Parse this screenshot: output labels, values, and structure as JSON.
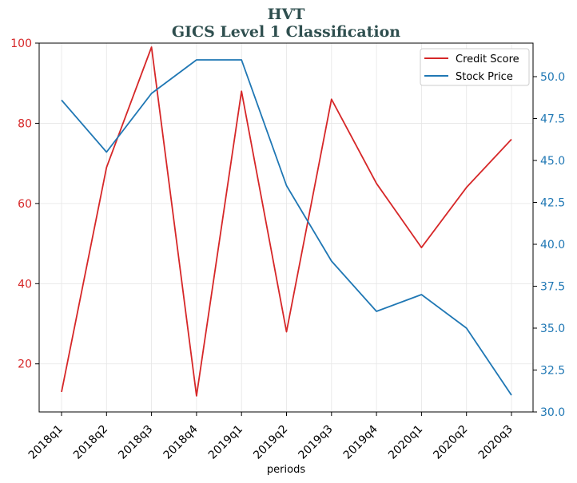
{
  "chart_data": {
    "type": "line",
    "title": "HVT",
    "subtitle": "GICS Level 1 Classification",
    "xlabel": "periods",
    "categories": [
      "2018q1",
      "2018q2",
      "2018q3",
      "2018q4",
      "2019q1",
      "2019q2",
      "2019q3",
      "2019q4",
      "2020q1",
      "2020q2",
      "2020q3"
    ],
    "left_axis": {
      "ylim": [
        8,
        100
      ],
      "ticks": [
        20,
        40,
        60,
        80,
        100
      ],
      "color": "#d62728"
    },
    "right_axis": {
      "ylim": [
        30,
        52
      ],
      "ticks": [
        30.0,
        32.5,
        35.0,
        37.5,
        40.0,
        42.5,
        45.0,
        47.5,
        50.0
      ],
      "color": "#1f77b4"
    },
    "series": [
      {
        "name": "Credit Score",
        "axis": "left",
        "color": "#d62728",
        "values": [
          13,
          69,
          99,
          12,
          88,
          28,
          86,
          65,
          49,
          64,
          76
        ]
      },
      {
        "name": "Stock Price",
        "axis": "right",
        "color": "#1f77b4",
        "values": [
          48.6,
          45.5,
          49.0,
          51.0,
          51.0,
          43.5,
          39.0,
          36.0,
          37.0,
          35.0,
          31.0
        ]
      }
    ],
    "grid": true,
    "legend_position": "top-right"
  }
}
